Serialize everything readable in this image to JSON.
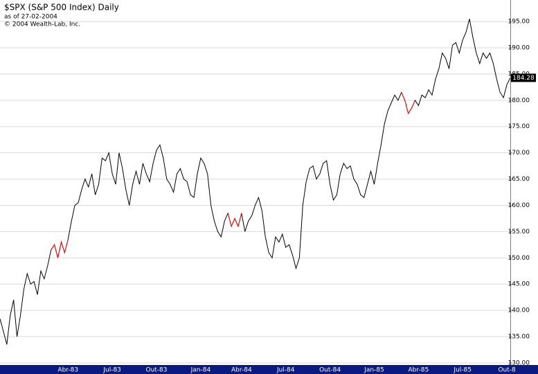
{
  "chart_data": {
    "type": "line",
    "title": "$SPX (S&P 500 Index) Daily",
    "subtitle": "as of 27-02-2004",
    "copyright": "© 2004 Wealth-Lab, Inc.",
    "categories": [
      null,
      null,
      null,
      null,
      null,
      null,
      null,
      null,
      null,
      null,
      null,
      null,
      null,
      null,
      null,
      null,
      null,
      null,
      null,
      null,
      "Abr-83",
      null,
      null,
      null,
      null,
      null,
      null,
      null,
      null,
      null,
      null,
      null,
      null,
      "Jul-83",
      null,
      null,
      null,
      null,
      null,
      null,
      null,
      null,
      null,
      null,
      null,
      null,
      "Out-83",
      null,
      null,
      null,
      null,
      null,
      null,
      null,
      null,
      null,
      null,
      null,
      null,
      "Jan-84",
      null,
      null,
      null,
      null,
      null,
      null,
      null,
      null,
      null,
      null,
      null,
      "Abr-84",
      null,
      null,
      null,
      null,
      null,
      null,
      null,
      null,
      null,
      null,
      null,
      null,
      "Jul-84",
      null,
      null,
      null,
      null,
      null,
      null,
      null,
      null,
      null,
      null,
      null,
      null,
      "Out-84",
      null,
      null,
      null,
      null,
      null,
      null,
      null,
      null,
      null,
      null,
      null,
      null,
      "Jan-85",
      null,
      null,
      null,
      null,
      null,
      null,
      null,
      null,
      null,
      null,
      null,
      null,
      "Abr-85",
      null,
      null,
      null,
      null,
      null,
      null,
      null,
      null,
      null,
      null,
      null,
      null,
      "Jul-85",
      null,
      null,
      null,
      null,
      null,
      null,
      null,
      null,
      null,
      null,
      null,
      null,
      "Out-8",
      null
    ],
    "series": [
      {
        "color": "#000000",
        "values": [
          138.4,
          136,
          133.5,
          139,
          142,
          135,
          139,
          144,
          147,
          145,
          145.5,
          143,
          147.5,
          146,
          148.5,
          151.5,
          152.5,
          150,
          153,
          151,
          153.5,
          157,
          160,
          160.5,
          163,
          165,
          163.5,
          166,
          162,
          164,
          169,
          168.5,
          170,
          166,
          164,
          170,
          167,
          163,
          160,
          164,
          166.5,
          164,
          168,
          166,
          164.5,
          168,
          170.5,
          171.5,
          169,
          165,
          164,
          162.5,
          166,
          167,
          165,
          164.5,
          162,
          161.5,
          166,
          169,
          168,
          166,
          160,
          157,
          155,
          154,
          157,
          158.5,
          156,
          157.5,
          156,
          158.5,
          155,
          157,
          158,
          160,
          161.5,
          159,
          154,
          151,
          150,
          154,
          153,
          154.5,
          152,
          152.5,
          150.5,
          148,
          150,
          160,
          164.5,
          167,
          167.5,
          165,
          166,
          168,
          168.5,
          164,
          161,
          162,
          166,
          168,
          167,
          167.5,
          165,
          164,
          162,
          161.5,
          164,
          166.5,
          164,
          168,
          171.5,
          175.5,
          178,
          179.5,
          181,
          180,
          181.5,
          180,
          177.5,
          178.5,
          180,
          179,
          181,
          180.5,
          182,
          181,
          184,
          186,
          189,
          188,
          186,
          190.5,
          191,
          189,
          191.5,
          193,
          195.5,
          192,
          189,
          187,
          189,
          188,
          189,
          187,
          184,
          181.5,
          180.5,
          183,
          184.28
        ]
      },
      {
        "color": "#ff0000",
        "values": [
          null,
          null,
          null,
          null,
          null,
          null,
          null,
          null,
          null,
          null,
          null,
          null,
          null,
          null,
          null,
          151.5,
          152.5,
          150,
          153,
          151,
          153.5,
          null,
          null,
          null,
          null,
          null,
          null,
          null,
          null,
          null,
          null,
          null,
          null,
          null,
          null,
          null,
          null,
          null,
          null,
          null,
          null,
          null,
          null,
          null,
          null,
          null,
          null,
          null,
          null,
          null,
          null,
          null,
          null,
          null,
          null,
          null,
          null,
          null,
          null,
          null,
          null,
          null,
          null,
          null,
          null,
          null,
          null,
          158.5,
          156,
          157.5,
          156,
          158.5,
          null,
          null,
          null,
          null,
          null,
          null,
          null,
          null,
          null,
          null,
          null,
          null,
          null,
          null,
          null,
          null,
          null,
          null,
          null,
          null,
          null,
          null,
          null,
          null,
          null,
          null,
          null,
          null,
          null,
          null,
          null,
          null,
          null,
          null,
          null,
          null,
          null,
          null,
          null,
          null,
          null,
          null,
          null,
          null,
          null,
          null,
          181.5,
          180,
          177.5,
          178.5,
          180,
          null,
          null,
          null,
          null,
          null,
          null,
          null,
          null,
          null,
          null,
          null,
          null,
          null,
          null,
          null,
          null,
          null,
          null,
          null,
          null,
          null,
          null,
          null,
          null,
          null,
          null,
          null,
          null
        ]
      }
    ],
    "current_value": 184.28,
    "ylim": [
      129.6,
      199.1
    ],
    "yticks": [
      {
        "value": 130,
        "label": "130.00"
      },
      {
        "value": 135,
        "label": "135.00"
      },
      {
        "value": 140,
        "label": "140.00"
      },
      {
        "value": 145,
        "label": "145.00"
      },
      {
        "value": 150,
        "label": "150.00"
      },
      {
        "value": 155,
        "label": "155.00"
      },
      {
        "value": 160,
        "label": "160.00"
      },
      {
        "value": 165,
        "label": "165.00"
      },
      {
        "value": 170,
        "label": "170.00"
      },
      {
        "value": 175,
        "label": "175.00"
      },
      {
        "value": 180,
        "label": "180.00"
      },
      {
        "value": 185,
        "label": "185.00"
      },
      {
        "value": 190,
        "label": "190.00"
      },
      {
        "value": 195,
        "label": "195.00"
      }
    ],
    "grid": true
  }
}
